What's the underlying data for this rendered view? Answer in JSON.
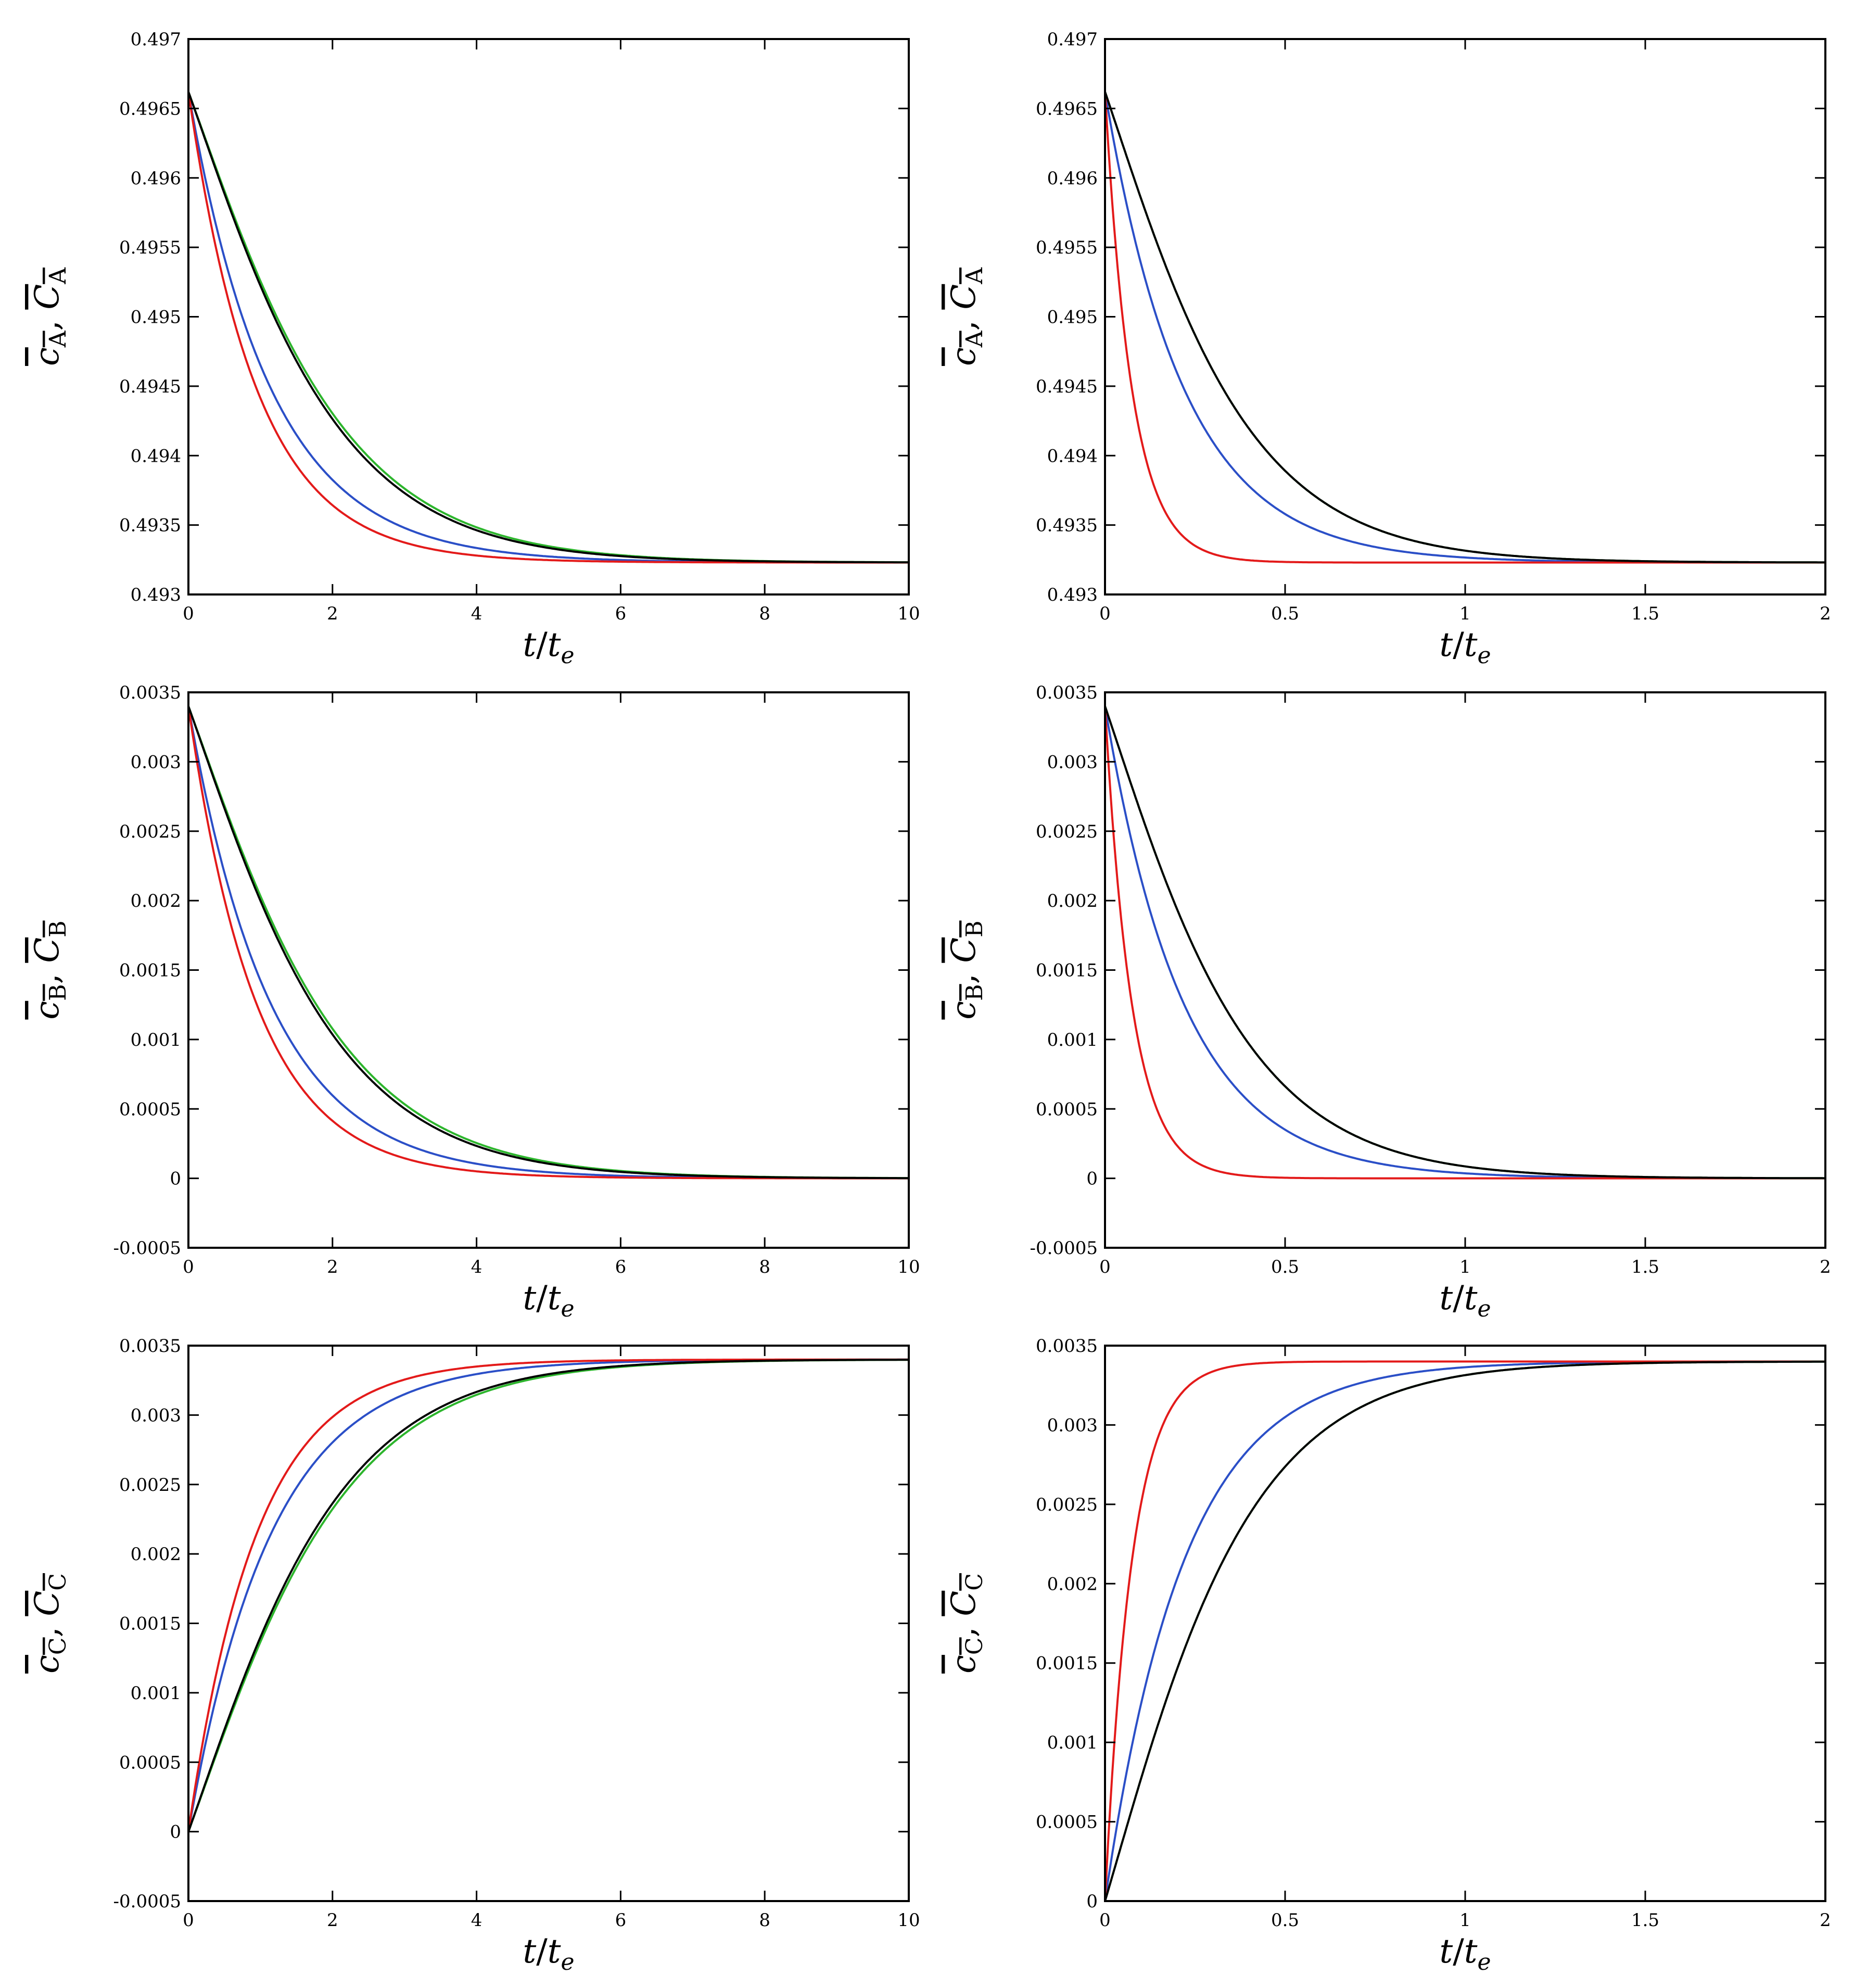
{
  "chart_data": [
    {
      "type": "line",
      "panel": "A-long",
      "xlabel": "t/t_e",
      "ylabel": "c_A, C_A",
      "xlim": [
        0,
        10
      ],
      "ylim": [
        0.493,
        0.497
      ],
      "xticks": [
        "0",
        "2",
        "4",
        "6",
        "8",
        "10"
      ],
      "yticks": [
        "0.493",
        "0.4935",
        "0.494",
        "0.4945",
        "0.495",
        "0.4955",
        "0.496",
        "0.4965",
        "0.497"
      ],
      "grid": false,
      "series": [
        {
          "color": "#000000",
          "tau": 1.05,
          "sigmoid": true
        },
        {
          "color": "#2db52d",
          "tau": 1.08,
          "sigmoid": true
        },
        {
          "color": "#2b4fc7",
          "tau": 1.15,
          "sigmoid": false
        },
        {
          "color": "#e31a1a",
          "tau": 0.95,
          "sigmoid": false
        }
      ],
      "y0": 0.49662,
      "yinf": 0.49323
    },
    {
      "type": "line",
      "panel": "A-short",
      "xlabel": "t/t_e",
      "ylabel": "c_A, C_A",
      "xlim": [
        0,
        2
      ],
      "ylim": [
        0.493,
        0.497
      ],
      "xticks": [
        "0",
        "0.5",
        "1",
        "1.5",
        "2"
      ],
      "yticks": [
        "0.493",
        "0.4935",
        "0.494",
        "0.4945",
        "0.495",
        "0.4955",
        "0.496",
        "0.4965",
        "0.497"
      ],
      "grid": false,
      "series": [
        {
          "color": "#000000",
          "tau": 0.2,
          "sigmoid": true
        },
        {
          "color": "#2db52d",
          "tau": 0.2,
          "sigmoid": true
        },
        {
          "color": "#2b4fc7",
          "tau": 0.22,
          "sigmoid": false
        },
        {
          "color": "#e31a1a",
          "tau": 0.075,
          "sigmoid": false
        }
      ],
      "y0": 0.49662,
      "yinf": 0.49323
    },
    {
      "type": "line",
      "panel": "B-long",
      "xlabel": "t/t_e",
      "ylabel": "c_B, C_B",
      "xlim": [
        0,
        10
      ],
      "ylim": [
        -0.0005,
        0.0035
      ],
      "xticks": [
        "0",
        "2",
        "4",
        "6",
        "8",
        "10"
      ],
      "yticks": [
        "-0.0005",
        "0",
        "0.0005",
        "0.001",
        "0.0015",
        "0.002",
        "0.0025",
        "0.003",
        "0.0035"
      ],
      "grid": false,
      "series": [
        {
          "color": "#000000",
          "tau": 1.05,
          "sigmoid": true
        },
        {
          "color": "#2db52d",
          "tau": 1.08,
          "sigmoid": true
        },
        {
          "color": "#2b4fc7",
          "tau": 1.15,
          "sigmoid": false
        },
        {
          "color": "#e31a1a",
          "tau": 0.95,
          "sigmoid": false
        }
      ],
      "y0": 0.0034,
      "yinf": 0.0
    },
    {
      "type": "line",
      "panel": "B-short",
      "xlabel": "t/t_e",
      "ylabel": "c_B, C_B",
      "xlim": [
        0,
        2
      ],
      "ylim": [
        -0.0005,
        0.0035
      ],
      "xticks": [
        "0",
        "0.5",
        "1",
        "1.5",
        "2"
      ],
      "yticks": [
        "-0.0005",
        "0",
        "0.0005",
        "0.001",
        "0.0015",
        "0.002",
        "0.0025",
        "0.003",
        "0.0035"
      ],
      "grid": false,
      "series": [
        {
          "color": "#000000",
          "tau": 0.2,
          "sigmoid": true
        },
        {
          "color": "#2db52d",
          "tau": 0.2,
          "sigmoid": true
        },
        {
          "color": "#2b4fc7",
          "tau": 0.22,
          "sigmoid": false
        },
        {
          "color": "#e31a1a",
          "tau": 0.075,
          "sigmoid": false
        }
      ],
      "y0": 0.0034,
      "yinf": 0.0
    },
    {
      "type": "line",
      "panel": "C-long",
      "xlabel": "t/t_e",
      "ylabel": "c_C, C_C",
      "xlim": [
        0,
        10
      ],
      "ylim": [
        -0.0005,
        0.0035
      ],
      "xticks": [
        "0",
        "2",
        "4",
        "6",
        "8",
        "10"
      ],
      "yticks": [
        "-0.0005",
        "0",
        "0.0005",
        "0.001",
        "0.0015",
        "0.002",
        "0.0025",
        "0.003",
        "0.0035"
      ],
      "grid": false,
      "series": [
        {
          "color": "#000000",
          "tau": 1.05,
          "sigmoid": true
        },
        {
          "color": "#2db52d",
          "tau": 1.08,
          "sigmoid": true
        },
        {
          "color": "#2b4fc7",
          "tau": 1.15,
          "sigmoid": false
        },
        {
          "color": "#e31a1a",
          "tau": 0.95,
          "sigmoid": false
        }
      ],
      "y0": 0.0,
      "yinf": 0.0034
    },
    {
      "type": "line",
      "panel": "C-short",
      "xlabel": "t/t_e",
      "ylabel": "c_C, C_C",
      "xlim": [
        0,
        2
      ],
      "ylim": [
        0,
        0.0035
      ],
      "xticks": [
        "0",
        "0.5",
        "1",
        "1.5",
        "2"
      ],
      "yticks": [
        "0",
        "0.0005",
        "0.001",
        "0.0015",
        "0.002",
        "0.0025",
        "0.003",
        "0.0035"
      ],
      "grid": false,
      "series": [
        {
          "color": "#000000",
          "tau": 0.2,
          "sigmoid": true
        },
        {
          "color": "#2db52d",
          "tau": 0.2,
          "sigmoid": true
        },
        {
          "color": "#2b4fc7",
          "tau": 0.22,
          "sigmoid": false
        },
        {
          "color": "#e31a1a",
          "tau": 0.075,
          "sigmoid": false
        }
      ],
      "y0": 0.0,
      "yinf": 0.0034
    }
  ]
}
